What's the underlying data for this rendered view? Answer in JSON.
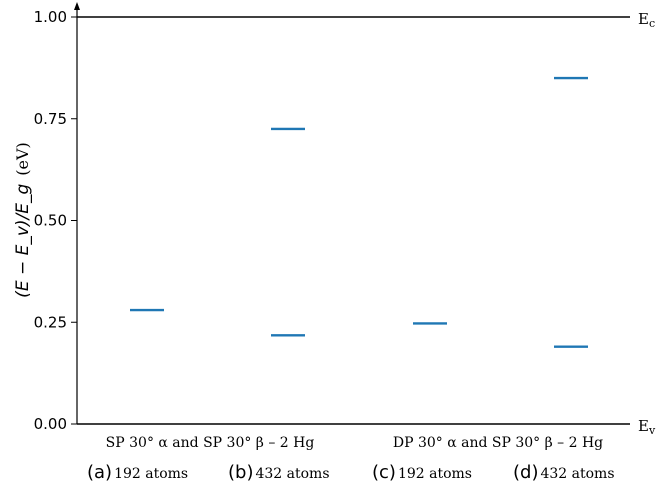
{
  "chart_data": {
    "type": "scatter",
    "ylabel_math": "(E − E_v)/E_g",
    "ylabel_unit": "(eV)",
    "ylim": [
      0,
      1
    ],
    "yticks": [
      "0.00",
      "0.25",
      "0.50",
      "0.75",
      "1.00"
    ],
    "band_labels": {
      "top": "E",
      "top_sub": "c",
      "bottom": "E",
      "bottom_sub": "v"
    },
    "groups": [
      "SP 30° α and SP 30° β – 2 Hg",
      "DP 30° α and SP 30° β – 2 Hg"
    ],
    "cases": [
      {
        "letter": "(a)",
        "atoms": "192 atoms",
        "levels": [
          0.28
        ]
      },
      {
        "letter": "(b)",
        "atoms": "432 atoms",
        "levels": [
          0.725,
          0.218
        ]
      },
      {
        "letter": "(c)",
        "atoms": "192 atoms",
        "levels": [
          0.247
        ]
      },
      {
        "letter": "(d)",
        "atoms": "432 atoms",
        "levels": [
          0.85,
          0.19
        ]
      }
    ],
    "level_color": "#1f77b4",
    "grid": false
  }
}
